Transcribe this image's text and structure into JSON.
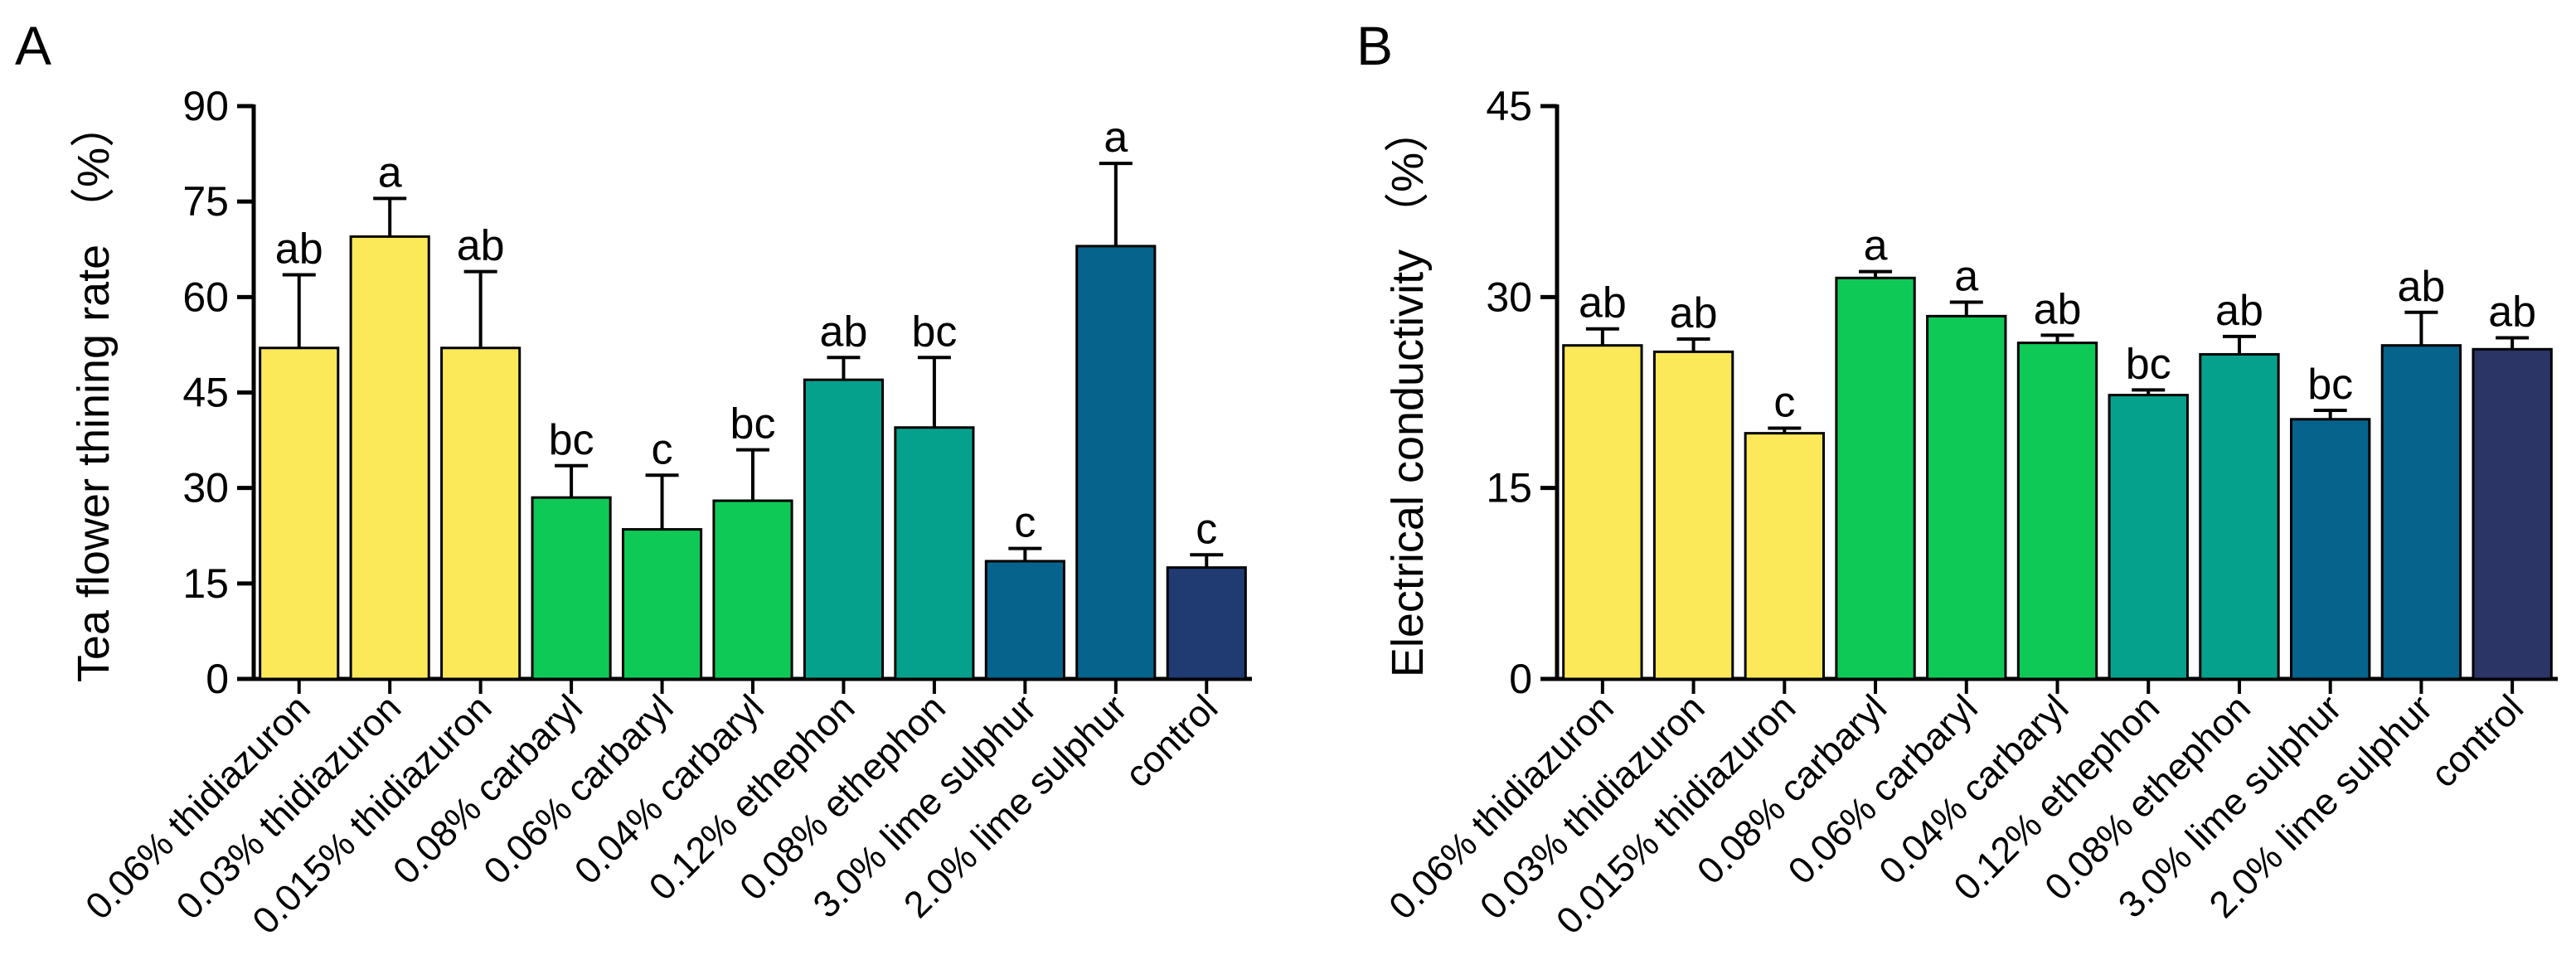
{
  "chart_data": [
    {
      "type": "bar",
      "panel_label": "A",
      "ylabel": "Tea flower thining rate （%）",
      "ylim": [
        0,
        90
      ],
      "yticks": [
        0,
        15,
        30,
        45,
        60,
        75,
        90
      ],
      "categories": [
        "0.06% thidiazuron",
        "0.03% thidiazuron",
        "0.015% thidiazuron",
        "0.08% carbaryl",
        "0.06% carbaryl",
        "0.04% carbaryl",
        "0.12% ethephon",
        "0.08% ethephon",
        "3.0% lime sulphur",
        "2.0% lime sulphur",
        "control"
      ],
      "values": [
        52,
        69.5,
        52,
        28.5,
        23.5,
        28,
        47,
        39.5,
        18.5,
        68,
        17.5
      ],
      "errors": [
        11.5,
        6,
        12,
        5,
        8.5,
        8,
        3.5,
        11,
        2,
        13,
        2
      ],
      "significance": [
        "ab",
        "a",
        "ab",
        "bc",
        "c",
        "bc",
        "ab",
        "bc",
        "c",
        "a",
        "c"
      ],
      "colors": [
        "#fbe95a",
        "#fbe95a",
        "#fbe95a",
        "#0fc957",
        "#0fc957",
        "#0fc957",
        "#06a18d",
        "#06a18d",
        "#06638c",
        "#06638c",
        "#203a72"
      ]
    },
    {
      "type": "bar",
      "panel_label": "B",
      "ylabel": "Electrical conductivity （%）",
      "ylim": [
        0,
        45
      ],
      "yticks": [
        0,
        15,
        30,
        45
      ],
      "categories": [
        "0.06% thidiazuron",
        "0.03% thidiazuron",
        "0.015% thidiazuron",
        "0.08% carbaryl",
        "0.06% carbaryl",
        "0.04% carbaryl",
        "0.12% ethephon",
        "0.08% ethephon",
        "3.0% lime sulphur",
        "2.0% lime sulphur",
        "control"
      ],
      "values": [
        26.2,
        25.7,
        19.3,
        31.5,
        28.5,
        26.4,
        22.3,
        25.5,
        20.4,
        26.2,
        25.9
      ],
      "errors": [
        1.3,
        1.0,
        0.4,
        0.5,
        1.1,
        0.6,
        0.4,
        1.4,
        0.7,
        2.6,
        0.9
      ],
      "significance": [
        "ab",
        "ab",
        "c",
        "a",
        "a",
        "ab",
        "bc",
        "ab",
        "bc",
        "ab",
        "ab"
      ],
      "colors": [
        "#fbe95a",
        "#fbe95a",
        "#fbe95a",
        "#0fc957",
        "#0fc957",
        "#0fc957",
        "#06a18d",
        "#06a18d",
        "#06638c",
        "#06638c",
        "#2b3566"
      ]
    }
  ]
}
